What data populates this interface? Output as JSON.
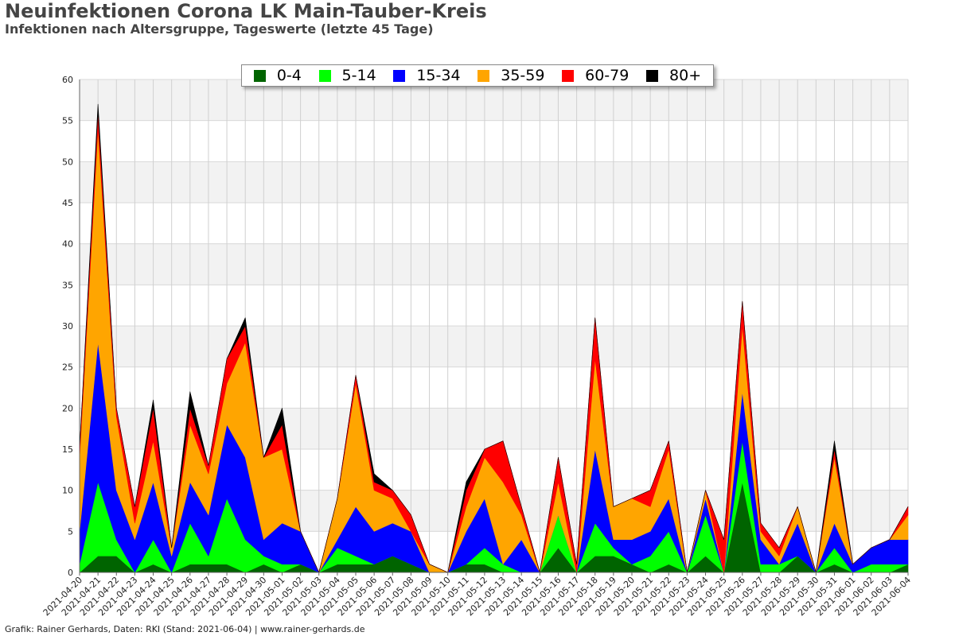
{
  "header": {
    "title": "Neuinfektionen Corona LK Main-Tauber-Kreis",
    "subtitle": "Infektionen nach Altersgruppe, Tageswerte (letzte 45 Tage)"
  },
  "footer": {
    "text": "Grafik: Rainer Gerhards, Daten: RKI (Stand: 2021-06-04) | www.rainer-gerhards.de"
  },
  "colors": {
    "0-4": "#006400",
    "5-14": "#00ff00",
    "15-34": "#0000ff",
    "35-59": "#ffa500",
    "60-79": "#ff0000",
    "80+": "#000000"
  },
  "chart_data": {
    "type": "area",
    "stacked": true,
    "title": "Neuinfektionen Corona LK Main-Tauber-Kreis",
    "subtitle": "Infektionen nach Altersgruppe, Tageswerte (letzte 45 Tage)",
    "xlabel": "",
    "ylabel": "",
    "ylim": [
      0,
      60
    ],
    "yticks": [
      0,
      5,
      10,
      15,
      20,
      25,
      30,
      35,
      40,
      45,
      50,
      55,
      60
    ],
    "grid": true,
    "legend_position": "top-center",
    "x": [
      "2021-04-20",
      "2021-04-21",
      "2021-04-22",
      "2021-04-23",
      "2021-04-24",
      "2021-04-25",
      "2021-04-26",
      "2021-04-27",
      "2021-04-28",
      "2021-04-29",
      "2021-04-30",
      "2021-05-01",
      "2021-05-02",
      "2021-05-03",
      "2021-05-04",
      "2021-05-05",
      "2021-05-06",
      "2021-05-07",
      "2021-05-08",
      "2021-05-09",
      "2021-05-10",
      "2021-05-11",
      "2021-05-12",
      "2021-05-13",
      "2021-05-14",
      "2021-05-15",
      "2021-05-16",
      "2021-05-17",
      "2021-05-18",
      "2021-05-19",
      "2021-05-20",
      "2021-05-21",
      "2021-05-22",
      "2021-05-23",
      "2021-05-24",
      "2021-05-25",
      "2021-05-26",
      "2021-05-27",
      "2021-05-28",
      "2021-05-29",
      "2021-05-30",
      "2021-05-31",
      "2021-06-01",
      "2021-06-02",
      "2021-06-03",
      "2021-06-04"
    ],
    "series": [
      {
        "name": "0-4",
        "color": "#006400",
        "values": [
          0,
          2,
          2,
          0,
          1,
          0,
          1,
          1,
          1,
          0,
          1,
          0,
          1,
          0,
          1,
          1,
          1,
          2,
          1,
          0,
          0,
          1,
          1,
          0,
          0,
          0,
          3,
          0,
          2,
          2,
          1,
          0,
          1,
          0,
          2,
          0,
          11,
          0,
          0,
          2,
          0,
          1,
          0,
          0,
          0,
          1
        ]
      },
      {
        "name": "5-14",
        "color": "#00ff00",
        "values": [
          1,
          9,
          2,
          0,
          3,
          0,
          5,
          1,
          8,
          4,
          1,
          1,
          0,
          0,
          2,
          1,
          0,
          0,
          0,
          0,
          0,
          0,
          2,
          1,
          0,
          0,
          4,
          0,
          4,
          1,
          0,
          2,
          4,
          0,
          5,
          0,
          5,
          1,
          1,
          0,
          0,
          2,
          0,
          1,
          1,
          0
        ]
      },
      {
        "name": "15-34",
        "color": "#0000ff",
        "values": [
          4,
          17,
          6,
          4,
          7,
          2,
          5,
          5,
          9,
          10,
          2,
          5,
          4,
          0,
          1,
          6,
          4,
          4,
          4,
          0,
          0,
          4,
          6,
          0,
          4,
          0,
          0,
          0,
          9,
          1,
          3,
          3,
          4,
          0,
          2,
          0,
          6,
          3,
          0,
          4,
          0,
          3,
          1,
          2,
          3,
          3
        ]
      },
      {
        "name": "35-59",
        "color": "#ffa500",
        "values": [
          9,
          26,
          9,
          2,
          5,
          1,
          7,
          5,
          5,
          14,
          10,
          9,
          0,
          0,
          5,
          15,
          5,
          3,
          0,
          1,
          0,
          3,
          5,
          10,
          3,
          0,
          4,
          0,
          11,
          4,
          5,
          3,
          6,
          0,
          1,
          0,
          8,
          1,
          1,
          2,
          0,
          8,
          0,
          0,
          0,
          3
        ]
      },
      {
        "name": "60-79",
        "color": "#ff0000",
        "values": [
          1,
          2,
          1,
          2,
          4,
          0,
          2,
          1,
          3,
          2,
          0,
          3,
          0,
          0,
          0,
          1,
          1,
          1,
          2,
          0,
          0,
          2,
          1,
          5,
          1,
          0,
          3,
          1,
          5,
          0,
          0,
          2,
          1,
          0,
          0,
          4,
          3,
          1,
          1,
          0,
          0,
          1,
          0,
          0,
          0,
          1
        ]
      },
      {
        "name": "80+",
        "color": "#000000",
        "values": [
          0,
          1,
          0,
          0,
          1,
          0,
          2,
          0,
          0,
          1,
          0,
          2,
          0,
          0,
          0,
          0,
          1,
          0,
          0,
          0,
          0,
          1,
          0,
          0,
          0,
          0,
          0,
          0,
          0,
          0,
          0,
          0,
          0,
          0,
          0,
          0,
          0,
          0,
          0,
          0,
          0,
          1,
          0,
          0,
          0,
          0
        ]
      }
    ]
  }
}
